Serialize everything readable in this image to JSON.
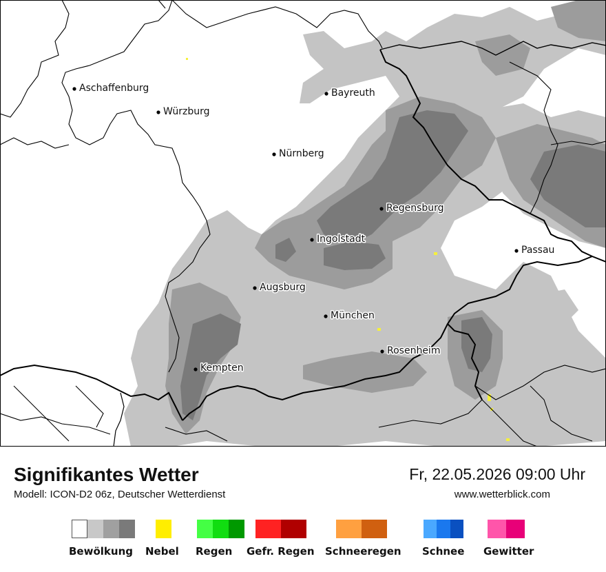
{
  "map": {
    "cities": [
      {
        "name": "Aschaffenburg"
      },
      {
        "name": "Würzburg"
      },
      {
        "name": "Bayreuth"
      },
      {
        "name": "Nürnberg"
      },
      {
        "name": "Regensburg"
      },
      {
        "name": "Ingolstadt"
      },
      {
        "name": "Passau"
      },
      {
        "name": "Augsburg"
      },
      {
        "name": "München"
      },
      {
        "name": "Rosenheim"
      },
      {
        "name": "Kempten"
      }
    ],
    "colors": {
      "cloud_light": "#c4c4c4",
      "cloud_mid": "#9c9c9c",
      "cloud_dark": "#7a7a7a",
      "fog": "#f5f03c",
      "border": "#000000"
    }
  },
  "footer": {
    "title": "Signifikantes Wetter",
    "subtitle": "Modell: ICON-D2 06z, Deutscher Wetterdienst",
    "datetime": "Fr, 22.05.2026 09:00 Uhr",
    "website": "www.wetterblick.com"
  },
  "legend": [
    {
      "label": "Bewölkung",
      "colors": [
        "#ffffff",
        "#c8c8c8",
        "#a0a0a0",
        "#7a7a7a"
      ]
    },
    {
      "label": "Nebel",
      "colors": [
        "#ffee00"
      ]
    },
    {
      "label": "Regen",
      "colors": [
        "#44ff44",
        "#11dd11",
        "#009900"
      ]
    },
    {
      "label": "Gefr. Regen",
      "colors": [
        "#ff2222",
        "#b00000"
      ]
    },
    {
      "label": "Schneeregen",
      "colors": [
        "#ffa040",
        "#d06010"
      ]
    },
    {
      "label": "Schnee",
      "colors": [
        "#4aa8ff",
        "#1a78ee",
        "#0a50c0"
      ]
    },
    {
      "label": "Gewitter",
      "colors": [
        "#ff55aa",
        "#e80078"
      ]
    }
  ]
}
